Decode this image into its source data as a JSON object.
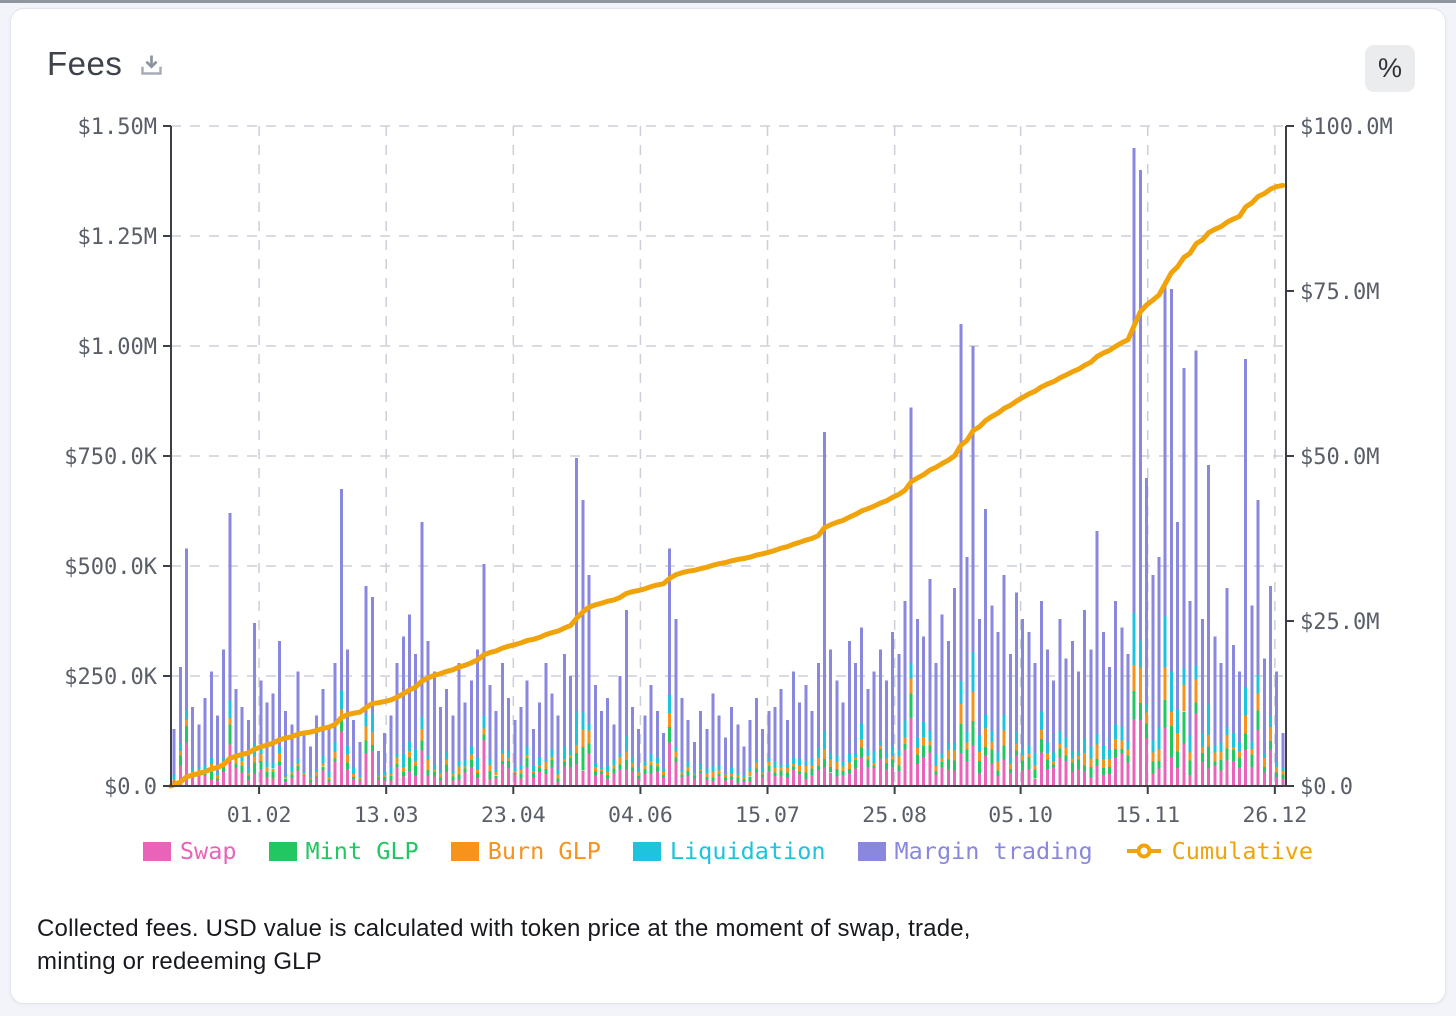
{
  "header": {
    "title": "Fees",
    "percent_button_label": "%"
  },
  "description": {
    "line1": "Collected fees. USD value is calculated with token price at the moment of swap, trade,",
    "line2": "minting or redeeming GLP"
  },
  "chart_data": {
    "type": "bar",
    "subtype": "stacked-daily-bars-with-cumulative-line",
    "title": "Fees",
    "left_axis": {
      "unit": "USD",
      "max_k": 1500,
      "ticks": [
        {
          "label": "$0.0",
          "value_k": 0
        },
        {
          "label": "$250.0K",
          "value_k": 250
        },
        {
          "label": "$500.0K",
          "value_k": 500
        },
        {
          "label": "$750.0K",
          "value_k": 750
        },
        {
          "label": "$1.00M",
          "value_k": 1000
        },
        {
          "label": "$1.25M",
          "value_k": 1250
        },
        {
          "label": "$1.50M",
          "value_k": 1500
        }
      ]
    },
    "right_axis": {
      "unit": "USD",
      "max_m": 100,
      "ticks": [
        {
          "label": "$0.0",
          "value_m": 0
        },
        {
          "label": "$25.0M",
          "value_m": 25
        },
        {
          "label": "$50.0M",
          "value_m": 50
        },
        {
          "label": "$75.0M",
          "value_m": 75
        },
        {
          "label": "$100.0M",
          "value_m": 100
        }
      ]
    },
    "x_axis": {
      "ticks": [
        {
          "label": "01.02",
          "pos": 0.079
        },
        {
          "label": "13.03",
          "pos": 0.193
        },
        {
          "label": "23.04",
          "pos": 0.307
        },
        {
          "label": "04.06",
          "pos": 0.421
        },
        {
          "label": "15.07",
          "pos": 0.535
        },
        {
          "label": "25.08",
          "pos": 0.649
        },
        {
          "label": "05.10",
          "pos": 0.762
        },
        {
          "label": "15.11",
          "pos": 0.876
        },
        {
          "label": "26.12",
          "pos": 0.99
        }
      ]
    },
    "stack_order": [
      "swap",
      "mint",
      "burn",
      "liquidation",
      "margin"
    ],
    "series_colors": {
      "swap": "#e964b8",
      "mint": "#22c761",
      "burn": "#f7931c",
      "liquidation": "#1ec3dd",
      "margin": "#8a87df",
      "cumulative": "#f0a30a"
    },
    "legend": [
      {
        "key": "swap",
        "label": "Swap",
        "type": "bar"
      },
      {
        "key": "mint",
        "label": "Mint GLP",
        "type": "bar"
      },
      {
        "key": "burn",
        "label": "Burn GLP",
        "type": "bar"
      },
      {
        "key": "liquidation",
        "label": "Liquidation",
        "type": "bar"
      },
      {
        "key": "margin",
        "label": "Margin trading",
        "type": "bar"
      },
      {
        "key": "cumulative",
        "label": "Cumulative",
        "type": "line"
      }
    ],
    "composition_fractions": {
      "swap": 0.13,
      "mint": 0.055,
      "burn": 0.045,
      "liquidation": 0.065
    },
    "bar_totals_k": [
      130,
      270,
      540,
      180,
      140,
      200,
      260,
      160,
      310,
      620,
      220,
      180,
      150,
      370,
      240,
      190,
      210,
      330,
      170,
      140,
      260,
      120,
      90,
      160,
      220,
      130,
      280,
      675,
      310,
      150,
      100,
      455,
      430,
      80,
      120,
      160,
      280,
      340,
      390,
      300,
      600,
      330,
      260,
      180,
      220,
      160,
      280,
      190,
      240,
      310,
      505,
      230,
      170,
      280,
      200,
      150,
      180,
      240,
      130,
      190,
      280,
      210,
      160,
      300,
      250,
      745,
      650,
      480,
      230,
      170,
      200,
      140,
      250,
      400,
      180,
      130,
      160,
      230,
      170,
      120,
      540,
      380,
      200,
      150,
      100,
      170,
      130,
      210,
      160,
      110,
      180,
      140,
      90,
      150,
      200,
      130,
      170,
      180,
      220,
      150,
      260,
      190,
      230,
      170,
      280,
      805,
      310,
      240,
      190,
      330,
      280,
      360,
      220,
      260,
      310,
      240,
      350,
      300,
      420,
      860,
      380,
      340,
      470,
      280,
      390,
      330,
      450,
      1050,
      520,
      1000,
      380,
      630,
      410,
      350,
      480,
      300,
      440,
      380,
      350,
      280,
      420,
      310,
      240,
      380,
      290,
      330,
      260,
      400,
      310,
      580,
      350,
      270,
      420,
      360,
      300,
      1450,
      1400,
      700,
      480,
      520,
      1140,
      1130,
      600,
      950,
      420,
      990,
      380,
      730,
      340,
      280,
      450,
      320,
      260,
      970,
      410,
      650,
      290,
      455,
      260,
      120
    ],
    "cumulative": {
      "start_m": 0,
      "final_m": 91,
      "definition": "running total of collected fees, right axis"
    },
    "style": {
      "grid_color": "#cbcfd8",
      "axis_color": "#3c4046",
      "tick_color": "#595e68",
      "grid_dashed": true,
      "legend_position": "bottom"
    }
  }
}
